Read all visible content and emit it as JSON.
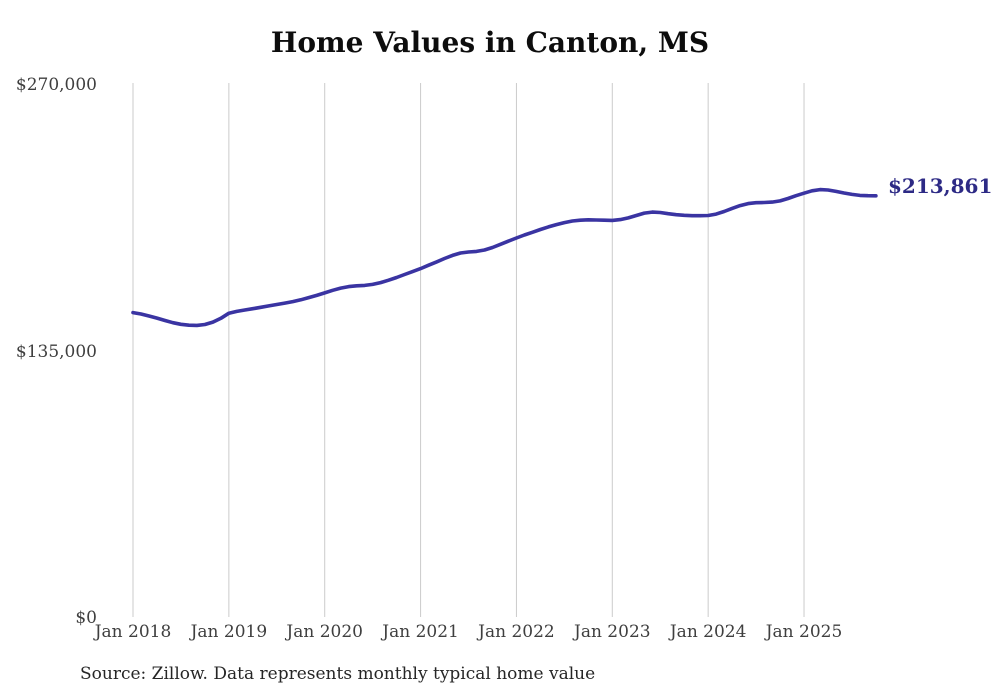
{
  "chart": {
    "title": "Home Values in Canton, MS",
    "source": "Source: Zillow. Data represents monthly typical home value",
    "end_label": "$213,861",
    "line_color": "#3a34a2",
    "end_label_color": "#2d2a85",
    "grid_color": "#cbcbcb",
    "tick_color": "#3f3f3f"
  },
  "chart_data": {
    "type": "line",
    "title": "Home Values in Canton, MS",
    "xlabel": "",
    "ylabel": "",
    "ylim": [
      0,
      270000
    ],
    "grid": "vertical-only",
    "legend": "none",
    "y_ticks": [
      0,
      135000,
      270000
    ],
    "y_tick_labels": [
      "$0",
      "$135,000",
      "$270,000"
    ],
    "x_tick_labels": [
      "Jan 2018",
      "Jan 2019",
      "Jan 2020",
      "Jan 2021",
      "Jan 2022",
      "Jan 2023",
      "Jan 2024",
      "Jan 2025"
    ],
    "latest": {
      "month": "2025-10",
      "value": 213861,
      "label": "$213,861"
    },
    "months": [
      "2018-01",
      "2018-02",
      "2018-03",
      "2018-04",
      "2018-05",
      "2018-06",
      "2018-07",
      "2018-08",
      "2018-09",
      "2018-10",
      "2018-11",
      "2018-12",
      "2019-01",
      "2019-02",
      "2019-03",
      "2019-04",
      "2019-05",
      "2019-06",
      "2019-07",
      "2019-08",
      "2019-09",
      "2019-10",
      "2019-11",
      "2019-12",
      "2020-01",
      "2020-02",
      "2020-03",
      "2020-04",
      "2020-05",
      "2020-06",
      "2020-07",
      "2020-08",
      "2020-09",
      "2020-10",
      "2020-11",
      "2020-12",
      "2021-01",
      "2021-02",
      "2021-03",
      "2021-04",
      "2021-05",
      "2021-06",
      "2021-07",
      "2021-08",
      "2021-09",
      "2021-10",
      "2021-11",
      "2021-12",
      "2022-01",
      "2022-02",
      "2022-03",
      "2022-04",
      "2022-05",
      "2022-06",
      "2022-07",
      "2022-08",
      "2022-09",
      "2022-10",
      "2022-11",
      "2022-12",
      "2023-01",
      "2023-02",
      "2023-03",
      "2023-04",
      "2023-05",
      "2023-06",
      "2023-07",
      "2023-08",
      "2023-09",
      "2023-10",
      "2023-11",
      "2023-12",
      "2024-01",
      "2024-02",
      "2024-03",
      "2024-04",
      "2024-05",
      "2024-06",
      "2024-07",
      "2024-08",
      "2024-09",
      "2024-10",
      "2024-11",
      "2024-12",
      "2025-01",
      "2025-02",
      "2025-03",
      "2025-04",
      "2025-05",
      "2025-06",
      "2025-07",
      "2025-08",
      "2025-09",
      "2025-10"
    ],
    "values": [
      154700,
      154000,
      153000,
      151900,
      150700,
      149600,
      148800,
      148300,
      148200,
      148700,
      149900,
      151800,
      154400,
      155300,
      156000,
      156700,
      157400,
      158100,
      158800,
      159500,
      160300,
      161200,
      162300,
      163400,
      164700,
      166000,
      167100,
      167900,
      168300,
      168500,
      169000,
      169900,
      171100,
      172500,
      174000,
      175500,
      177000,
      178700,
      180400,
      182100,
      183700,
      184900,
      185400,
      185700,
      186400,
      187700,
      189300,
      190900,
      192500,
      194000,
      195400,
      196800,
      198100,
      199300,
      200300,
      201100,
      201500,
      201700,
      201600,
      201500,
      201400,
      201800,
      202700,
      203900,
      205100,
      205600,
      205400,
      204800,
      204300,
      204000,
      203800,
      203800,
      203900,
      204600,
      205900,
      207500,
      208900,
      209900,
      210400,
      210500,
      210700,
      211300,
      212500,
      213900,
      215200,
      216400,
      217000,
      216800,
      216100,
      215300,
      214600,
      214100,
      213900,
      213861
    ]
  }
}
